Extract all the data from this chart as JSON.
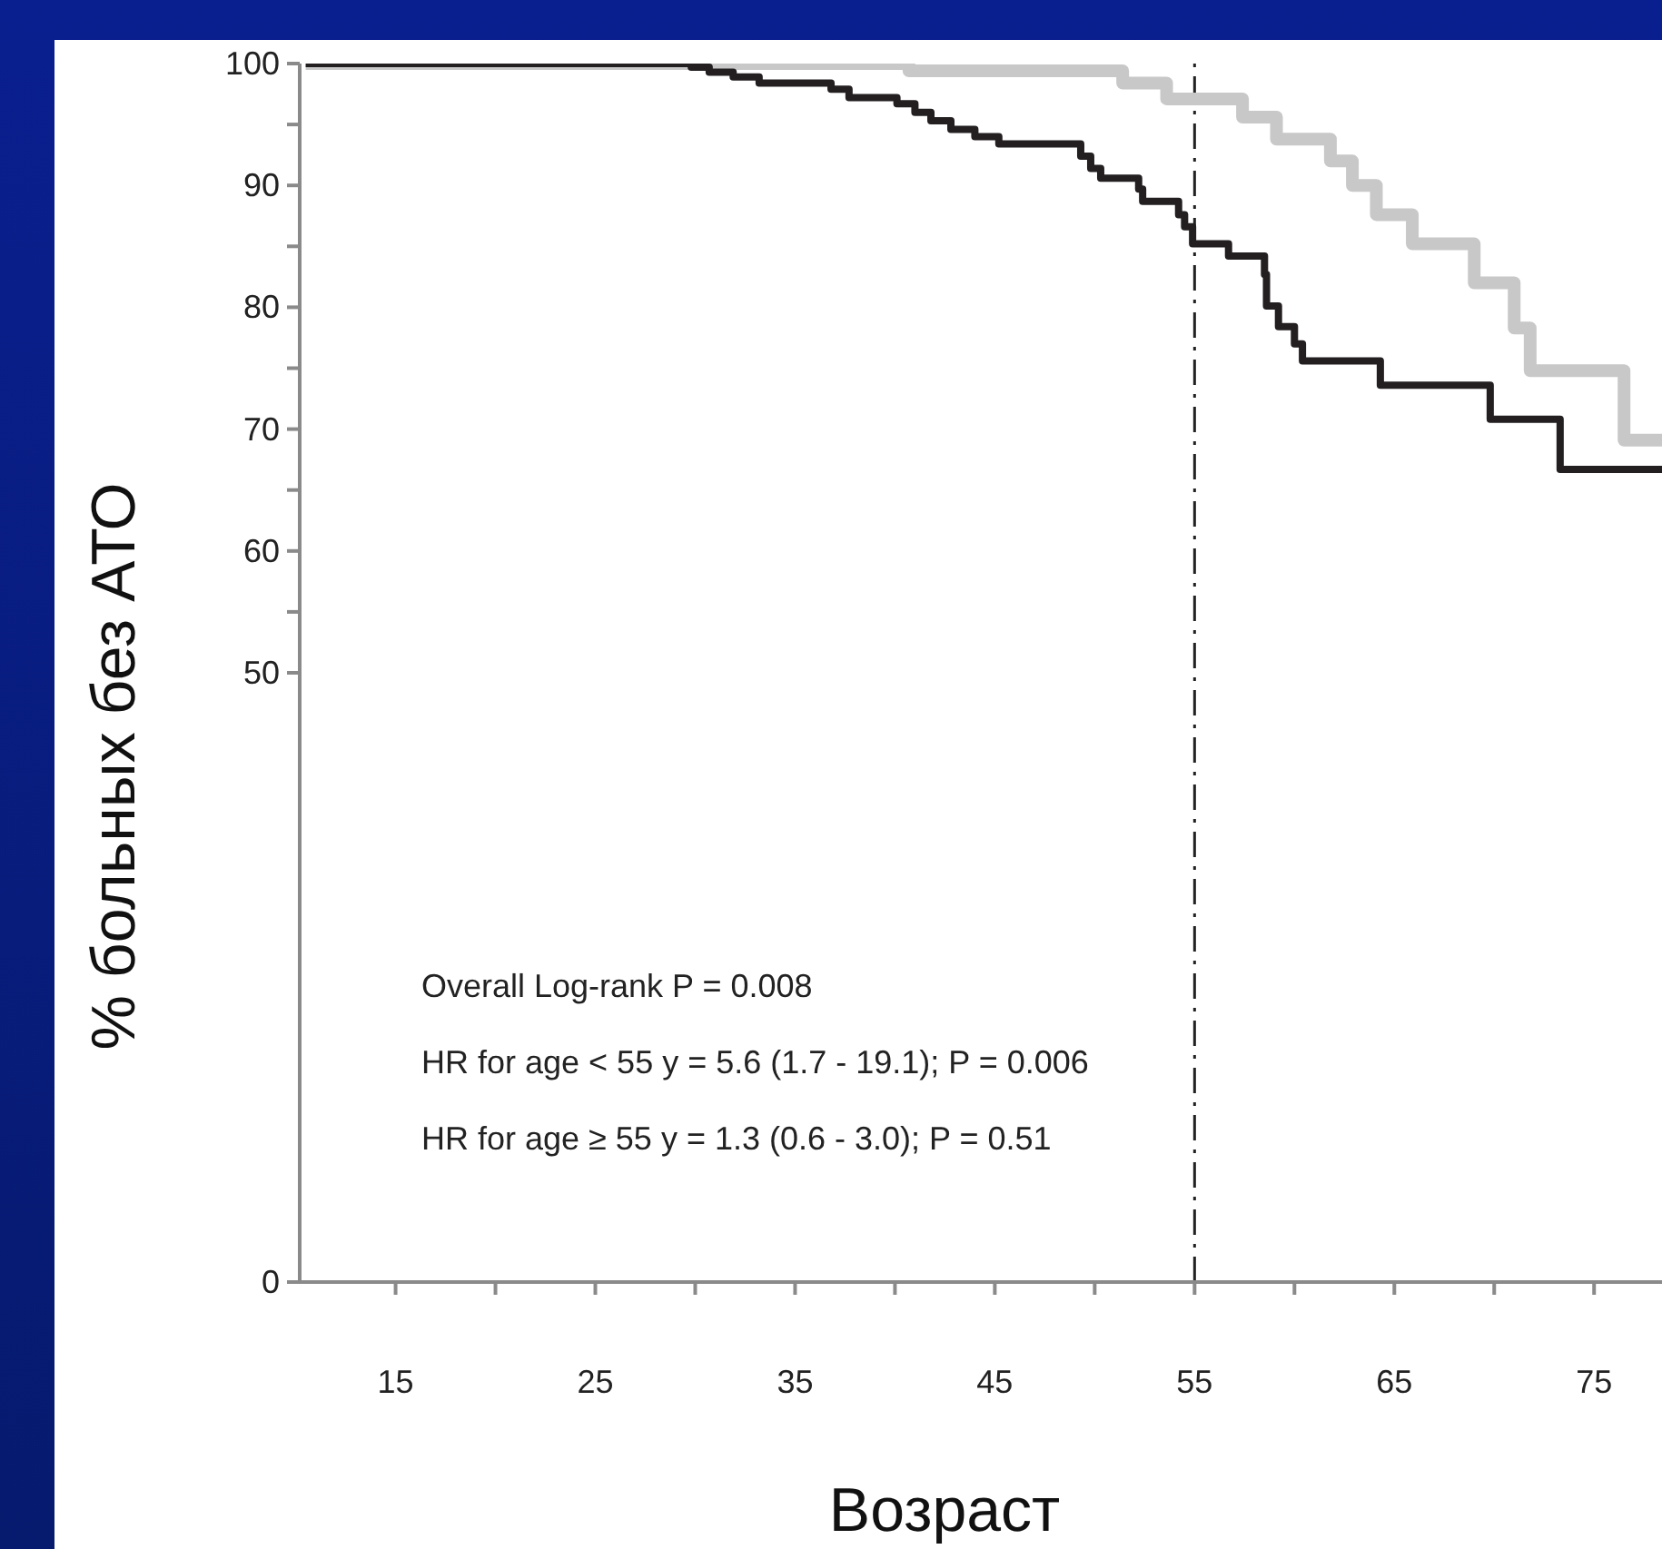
{
  "chart_data": {
    "type": "step",
    "xlabel": "Возраст",
    "ylabel": "% больных без АТО",
    "xlim": [
      10.2,
      78.4
    ],
    "xticks": [
      15,
      {
        "value": 20,
        "label": null
      },
      25,
      {
        "value": 30,
        "label": null
      },
      35,
      {
        "value": 40,
        "label": null
      },
      45,
      {
        "value": 50,
        "label": null
      },
      55,
      {
        "value": 60,
        "label": null
      },
      65,
      {
        "value": 70,
        "label": null
      },
      75
    ],
    "ylim": [
      0,
      100
    ],
    "yticks": [
      0,
      50,
      {
        "value": 55,
        "label": null
      },
      60,
      {
        "value": 65,
        "label": null
      },
      70,
      {
        "value": 75,
        "label": null
      },
      80,
      {
        "value": 85,
        "label": null
      },
      90,
      {
        "value": 95,
        "label": null
      },
      100
    ],
    "series": [
      {
        "color": "#c8c8c8",
        "x": [
          10.5,
          40.7,
          51.4,
          53.6,
          57.4,
          59.1,
          61.8,
          62.9,
          64.1,
          65.9,
          69.0,
          71.0,
          71.8,
          76.5,
          78.4
        ],
        "values": [
          100,
          99.4,
          98.4,
          97.1,
          95.6,
          93.8,
          92.0,
          90.0,
          87.6,
          85.2,
          82.0,
          78.3,
          74.8,
          69.1,
          69.1
        ]
      },
      {
        "color": "#231f20",
        "x": [
          10.5,
          29.8,
          30.7,
          31.9,
          33.2,
          36.8,
          37.7,
          40.1,
          41.0,
          41.8,
          42.8,
          44.0,
          45.2,
          49.3,
          49.8,
          50.3,
          52.2,
          52.4,
          54.2,
          54.5,
          54.9,
          56.7,
          58.5,
          58.6,
          59.2,
          60.0,
          60.4,
          64.3,
          69.8,
          73.3,
          78.4
        ],
        "values": [
          100,
          99.7,
          99.3,
          98.9,
          98.4,
          97.9,
          97.2,
          96.7,
          96.0,
          95.3,
          94.6,
          94.0,
          93.4,
          92.4,
          91.4,
          90.6,
          89.7,
          88.7,
          87.6,
          86.6,
          85.2,
          84.2,
          82.7,
          80.1,
          78.4,
          77.0,
          75.6,
          73.6,
          70.8,
          66.7,
          66.7
        ]
      }
    ],
    "ref_lines": [
      {
        "axis": "x",
        "value": 55,
        "label": null,
        "color": "#222222",
        "line_style": "dashed"
      }
    ],
    "annotations": [
      "Overall Log-rank P = 0.008",
      "HR for age < 55 y = 5.6 (1.7 - 19.1); P = 0.006",
      "HR for age ≥ 55 y = 1.3 (0.6 - 3.0); P = 0.51"
    ]
  }
}
